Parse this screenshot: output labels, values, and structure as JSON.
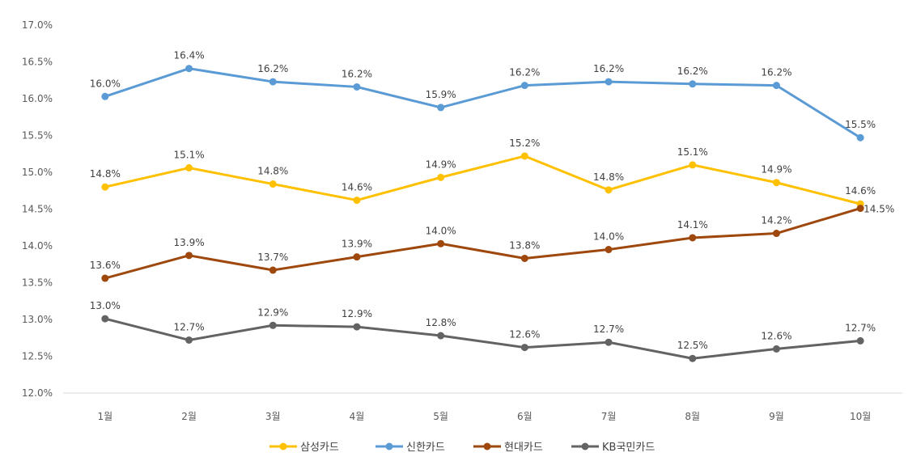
{
  "chart_data": {
    "type": "line",
    "title": "",
    "xlabel": "",
    "ylabel": "",
    "categories": [
      "1월",
      "2월",
      "3월",
      "4월",
      "5월",
      "6월",
      "7월",
      "8월",
      "9월",
      "10월"
    ],
    "ylim": [
      12.0,
      17.0
    ],
    "ytick_step": 0.5,
    "ytick_labels": [
      "12.0%",
      "12.5%",
      "13.0%",
      "13.5%",
      "14.0%",
      "14.5%",
      "15.0%",
      "15.5%",
      "16.0%",
      "16.5%",
      "17.0%"
    ],
    "grid": false,
    "legend_position": "bottom",
    "series": [
      {
        "name": "삼성카드",
        "color": "#FFC000",
        "values": [
          14.8,
          15.06,
          14.84,
          14.62,
          14.93,
          15.22,
          14.76,
          15.1,
          14.86,
          14.57
        ],
        "labels": [
          "14.8%",
          "15.1%",
          "14.8%",
          "14.6%",
          "14.9%",
          "15.2%",
          "14.8%",
          "15.1%",
          "14.9%",
          "14.6%"
        ]
      },
      {
        "name": "신한카드",
        "color": "#5B9BD5",
        "values": [
          16.03,
          16.41,
          16.23,
          16.16,
          15.88,
          16.18,
          16.23,
          16.2,
          16.18,
          15.47
        ],
        "labels": [
          "16.0%",
          "16.4%",
          "16.2%",
          "16.2%",
          "15.9%",
          "16.2%",
          "16.2%",
          "16.2%",
          "16.2%",
          "15.5%"
        ]
      },
      {
        "name": "현대카드",
        "color": "#9E480E",
        "values": [
          13.56,
          13.87,
          13.67,
          13.85,
          14.03,
          13.83,
          13.95,
          14.11,
          14.17,
          14.51
        ],
        "labels": [
          "13.6%",
          "13.9%",
          "13.7%",
          "13.9%",
          "14.0%",
          "13.8%",
          "14.0%",
          "14.1%",
          "14.2%",
          "14.5%"
        ]
      },
      {
        "name": "KB국민카드",
        "color": "#636363",
        "values": [
          13.01,
          12.72,
          12.92,
          12.9,
          12.78,
          12.62,
          12.69,
          12.47,
          12.6,
          12.71
        ],
        "labels": [
          "13.0%",
          "12.7%",
          "12.9%",
          "12.9%",
          "12.8%",
          "12.6%",
          "12.7%",
          "12.5%",
          "12.6%",
          "12.7%"
        ]
      }
    ]
  }
}
